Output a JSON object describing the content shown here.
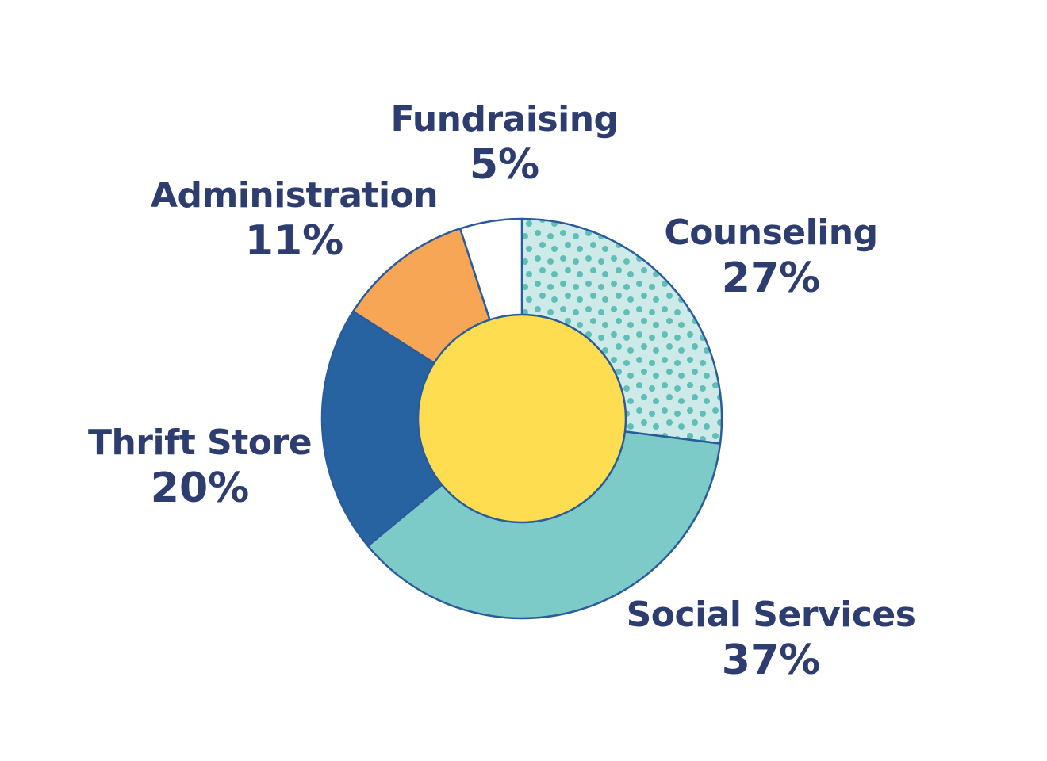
{
  "chart_data": {
    "type": "pie",
    "variant": "donut",
    "categories": [
      "Counseling",
      "Social Services",
      "Thrift Store",
      "Administration",
      "Fundraising"
    ],
    "values": [
      27,
      37,
      20,
      11,
      5
    ],
    "labels": [
      "27%",
      "37%",
      "20%",
      "11%",
      "5%"
    ],
    "colors": [
      "#cdeae9",
      "#7ccbc8",
      "#2763a0",
      "#f7a655",
      "#ffffff"
    ],
    "patterns": [
      "dots",
      "none",
      "none",
      "none",
      "none"
    ],
    "dot_color": "#5fbfb8",
    "center_color": "#fedd50",
    "outline_color": "#2a5c9c",
    "text_color": "#2d3d6f",
    "start": "top",
    "direction": "clockwise"
  }
}
